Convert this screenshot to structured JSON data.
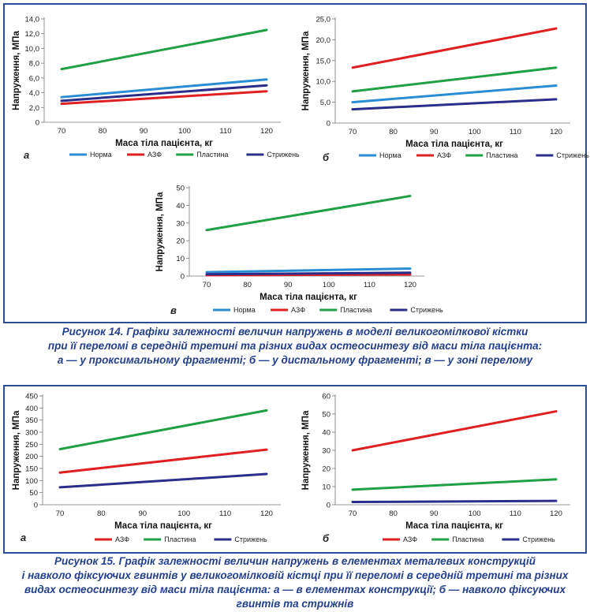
{
  "figure14": {
    "caption_lines": [
      "Рисунок 14. Графіки залежності величин напружень в моделі великогомілкової кістки",
      "при її переломі в середній третині та різних видах остеосинтезу від маси тіла пацієнта:",
      "а — у проксимальному фрагменті; б — у дистальному фрагменті; в — у зоні перелому"
    ]
  },
  "figure15": {
    "caption_lines": [
      "Рисунок 15. Графік залежності величин напружень в елементах металевих конструкцій",
      "і навколо фіксуючих гвинтів у великогомілковій кістці при її переломі в середній третині та різних",
      "видах остеосинтезу від маси тіла пацієнта: а — в елементах конструкції; б — навколо фіксуючих",
      "гвинтів та стрижнів"
    ]
  },
  "chart_data": [
    {
      "id": "fig14a",
      "panel_label": "а",
      "type": "line",
      "xlabel": "Маса тіла пацієнта, кг",
      "ylabel": "Напруження, МПа",
      "x": [
        70,
        120
      ],
      "xticks": [
        70,
        80,
        90,
        100,
        110,
        120
      ],
      "ylim": [
        0,
        14
      ],
      "yticks": [
        "0",
        "2,0",
        "4,0",
        "6,0",
        "8,0",
        "10,0",
        "12,0",
        "14,0"
      ],
      "grid": false,
      "legend_position": "bottom",
      "series": [
        {
          "name": "Норма",
          "color": "#2a8dd4",
          "values": [
            3.4,
            5.8
          ]
        },
        {
          "name": "АЗФ",
          "color": "#e02020",
          "values": [
            2.5,
            4.2
          ]
        },
        {
          "name": "Пластина",
          "color": "#1fa045",
          "values": [
            7.2,
            12.5
          ]
        },
        {
          "name": "Стрижень",
          "color": "#2a2e8a",
          "values": [
            2.9,
            5.0
          ]
        }
      ]
    },
    {
      "id": "fig14b",
      "panel_label": "б",
      "type": "line",
      "xlabel": "Маса тіла пацієнта, кг",
      "ylabel": "Напруження, МПа",
      "x": [
        70,
        120
      ],
      "xticks": [
        70,
        80,
        90,
        100,
        110,
        120
      ],
      "ylim": [
        0,
        25
      ],
      "yticks": [
        "0",
        "5,0",
        "10,0",
        "15,0",
        "20,0",
        "25,0"
      ],
      "grid": false,
      "legend_position": "bottom",
      "series": [
        {
          "name": "Норма",
          "color": "#2a8dd4",
          "values": [
            5.0,
            9.0
          ]
        },
        {
          "name": "АЗФ",
          "color": "#e02020",
          "values": [
            13.3,
            22.7
          ]
        },
        {
          "name": "Пластина",
          "color": "#1fa045",
          "values": [
            7.6,
            13.3
          ]
        },
        {
          "name": "Стрижень",
          "color": "#2a2e8a",
          "values": [
            3.3,
            5.7
          ]
        }
      ]
    },
    {
      "id": "fig14v",
      "panel_label": "в",
      "type": "line",
      "xlabel": "Маса тіла пацієнта, кг",
      "ylabel": "Напруження, МПа",
      "x": [
        70,
        120
      ],
      "xticks": [
        70,
        80,
        90,
        100,
        110,
        120
      ],
      "ylim": [
        0,
        50
      ],
      "yticks": [
        "0",
        "10",
        "20",
        "30",
        "40",
        "50"
      ],
      "grid": false,
      "legend_position": "bottom",
      "series": [
        {
          "name": "Норма",
          "color": "#2a8dd4",
          "values": [
            2.2,
            4.2
          ]
        },
        {
          "name": "АЗФ",
          "color": "#e02020",
          "values": [
            0.5,
            0.9
          ]
        },
        {
          "name": "Пластина",
          "color": "#1fa045",
          "values": [
            26.0,
            45.3
          ]
        },
        {
          "name": "Стрижень",
          "color": "#2a2e8a",
          "values": [
            1.0,
            1.9
          ]
        }
      ]
    },
    {
      "id": "fig15a",
      "panel_label": "а",
      "type": "line",
      "xlabel": "Маса тіла пацієнта, кг",
      "ylabel": "Напруження, МПа",
      "x": [
        70,
        120
      ],
      "xticks": [
        70,
        80,
        90,
        100,
        110,
        120
      ],
      "ylim": [
        0,
        450
      ],
      "yticks": [
        "0",
        "50",
        "100",
        "150",
        "200",
        "250",
        "300",
        "350",
        "400",
        "450"
      ],
      "grid": false,
      "legend_position": "bottom",
      "series": [
        {
          "name": "АЗФ",
          "color": "#e02020",
          "values": [
            133,
            228
          ]
        },
        {
          "name": "Пластина",
          "color": "#1fa045",
          "values": [
            230,
            390
          ]
        },
        {
          "name": "Стрижень",
          "color": "#2a2e8a",
          "values": [
            72,
            127
          ]
        }
      ]
    },
    {
      "id": "fig15b",
      "panel_label": "б",
      "type": "line",
      "xlabel": "Маса тіла пацієнта, кг",
      "ylabel": "Напруження, МПа",
      "x": [
        70,
        120
      ],
      "xticks": [
        70,
        80,
        90,
        100,
        110,
        120
      ],
      "ylim": [
        0,
        60
      ],
      "yticks": [
        "0",
        "10",
        "20",
        "30",
        "40",
        "50",
        "60"
      ],
      "grid": false,
      "legend_position": "bottom",
      "series": [
        {
          "name": "АЗФ",
          "color": "#e02020",
          "values": [
            30,
            51.5
          ]
        },
        {
          "name": "Пластина",
          "color": "#1fa045",
          "values": [
            8.3,
            14.0
          ]
        },
        {
          "name": "Стрижень",
          "color": "#2a2e8a",
          "values": [
            1.5,
            2.1
          ]
        }
      ]
    }
  ]
}
